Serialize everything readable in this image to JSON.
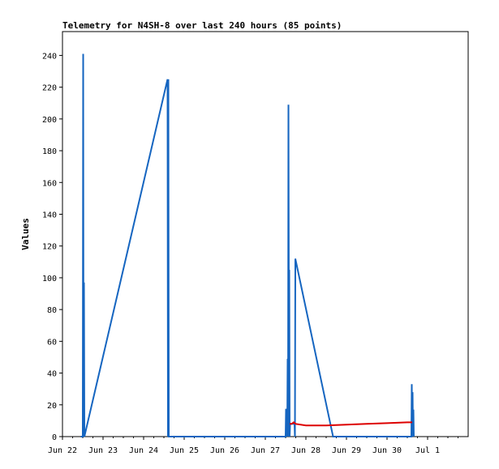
{
  "chart_data": {
    "type": "line",
    "title": "Telemetry for N4SH-8 over last 240 hours (85 points)",
    "xlabel": "",
    "ylabel": "Values",
    "xlim": [
      22.0,
      32.0
    ],
    "ylim": [
      0,
      255
    ],
    "x_ticks": [
      {
        "v": 22,
        "label": "Jun 22"
      },
      {
        "v": 23,
        "label": "Jun 23"
      },
      {
        "v": 24,
        "label": "Jun 24"
      },
      {
        "v": 25,
        "label": "Jun 25"
      },
      {
        "v": 26,
        "label": "Jun 26"
      },
      {
        "v": 27,
        "label": "Jun 27"
      },
      {
        "v": 28,
        "label": "Jun 28"
      },
      {
        "v": 29,
        "label": "Jun 29"
      },
      {
        "v": 30,
        "label": "Jun 30"
      },
      {
        "v": 31,
        "label": "Jul 1"
      }
    ],
    "y_ticks": [
      0,
      20,
      40,
      60,
      80,
      100,
      120,
      140,
      160,
      180,
      200,
      220,
      240
    ],
    "grid": false,
    "series": [
      {
        "color": "#1565c0",
        "points": [
          [
            22.45,
            0
          ],
          [
            22.5,
            0
          ],
          [
            22.51,
            241
          ],
          [
            22.52,
            0
          ],
          [
            22.53,
            97
          ],
          [
            22.54,
            0
          ],
          [
            24.59,
            225
          ],
          [
            24.6,
            0
          ],
          [
            24.61,
            225
          ],
          [
            24.62,
            0
          ],
          [
            27.5,
            0
          ],
          [
            27.51,
            17
          ],
          [
            27.53,
            17
          ],
          [
            27.54,
            0
          ],
          [
            27.55,
            49
          ],
          [
            27.56,
            0
          ],
          [
            27.57,
            209
          ],
          [
            27.58,
            81
          ],
          [
            27.59,
            105
          ],
          [
            27.6,
            0
          ],
          [
            27.61,
            8
          ],
          [
            27.72,
            8
          ],
          [
            27.73,
            0
          ],
          [
            27.74,
            112
          ],
          [
            28.67,
            0
          ],
          [
            30.6,
            0
          ],
          [
            30.61,
            33
          ],
          [
            30.62,
            6
          ],
          [
            30.63,
            28
          ],
          [
            30.64,
            0
          ],
          [
            30.65,
            17
          ],
          [
            30.66,
            0
          ]
        ]
      },
      {
        "color": "#dd0000",
        "points": [
          [
            27.6,
            8
          ],
          [
            27.65,
            8
          ],
          [
            27.7,
            9
          ],
          [
            27.75,
            8
          ],
          [
            28.0,
            7
          ],
          [
            28.5,
            7
          ],
          [
            29.0,
            7.5
          ],
          [
            29.5,
            8
          ],
          [
            30.0,
            8.5
          ],
          [
            30.5,
            9
          ],
          [
            30.62,
            9
          ]
        ]
      }
    ]
  }
}
